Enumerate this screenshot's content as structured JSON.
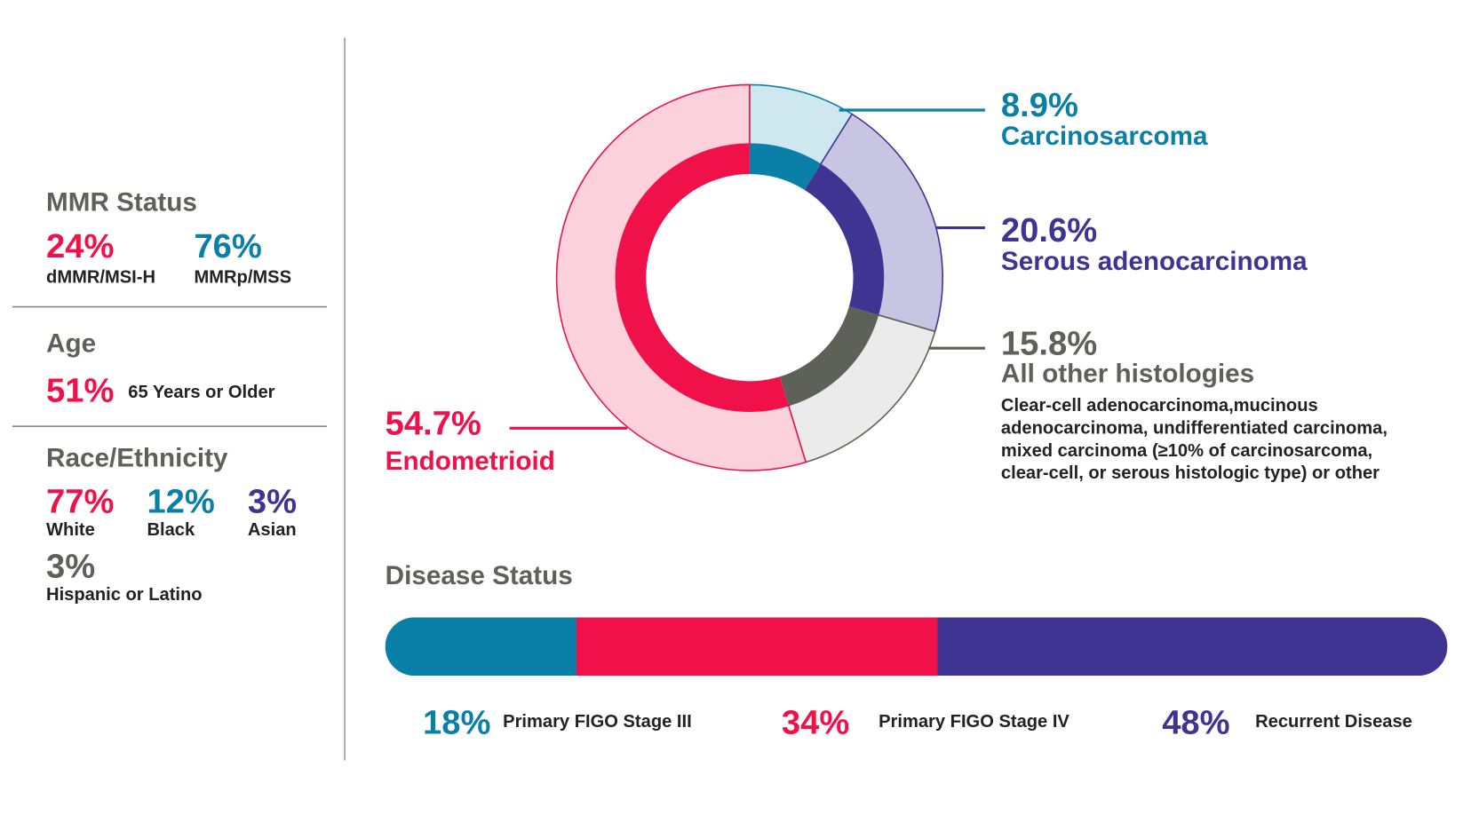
{
  "sidebar": {
    "mmr": {
      "title": "MMR Status",
      "items": [
        {
          "value": "24%",
          "label": "dMMR/MSI-H",
          "color": "#f0114a"
        },
        {
          "value": "76%",
          "label": "MMRp/MSS",
          "color": "#0a7fa8"
        }
      ]
    },
    "age": {
      "title": "Age",
      "items": [
        {
          "value": "51%",
          "label": "65 Years or Older",
          "color": "#f0114a"
        }
      ]
    },
    "race": {
      "title": "Race/Ethnicity",
      "items": [
        {
          "value": "77%",
          "label": "White",
          "color": "#f0114a"
        },
        {
          "value": "12%",
          "label": "Black",
          "color": "#0a7fa8"
        },
        {
          "value": "3%",
          "label": "Asian",
          "color": "#3f3491"
        },
        {
          "value": "3%",
          "label": "Hispanic or Latino",
          "color": "#5e6158"
        }
      ]
    }
  },
  "chart_data": [
    {
      "type": "donut",
      "categories": [
        "Carcinosarcoma",
        "Serous adenocarcinoma",
        "All other histologies",
        "Endometrioid"
      ],
      "values": [
        8.9,
        20.6,
        15.8,
        54.7
      ],
      "value_labels": [
        "8.9%",
        "20.6%",
        "15.8%",
        "54.7%"
      ],
      "colors": [
        "#0a7fa8",
        "#3f3491",
        "#5e6158",
        "#f0114a"
      ],
      "light_colors": [
        "#cfe7ee",
        "#c8c5e2",
        "#ebebeb",
        "#fbd1dc"
      ],
      "annotations": [
        "Clear-cell adenocarcinoma,mucinous",
        "adenocarcinoma, undifferentiated carcinoma,",
        "mixed carcinoma (≥10% of carcinosarcoma,",
        "clear-cell, or serous histologic type) or other"
      ]
    },
    {
      "type": "stacked-bar",
      "title": "Disease Status",
      "series": [
        {
          "name": "Primary FIGO Stage III",
          "color": "#0a7fa8",
          "values": [
            18
          ],
          "value_labels": [
            "18%"
          ]
        },
        {
          "name": "Primary FIGO Stage IV",
          "color": "#f0114a",
          "values": [
            34
          ],
          "value_labels": [
            "34%"
          ]
        },
        {
          "name": "Recurrent Disease",
          "color": "#3f3491",
          "values": [
            48
          ],
          "value_labels": [
            "48%"
          ]
        }
      ]
    }
  ]
}
